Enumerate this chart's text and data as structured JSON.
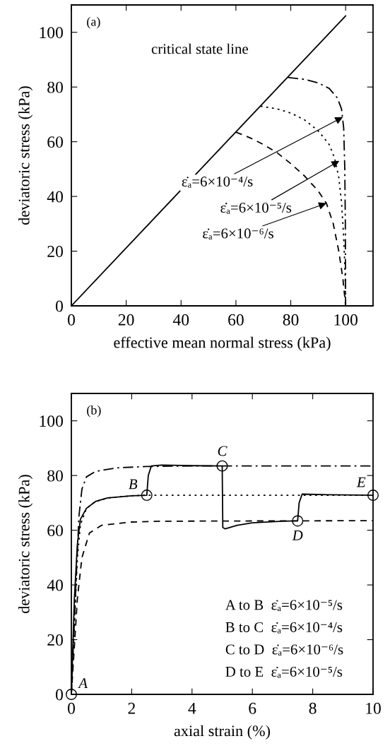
{
  "chart_data": [
    {
      "type": "line",
      "xlabel": "effective mean normal stress (kPa)",
      "ylabel": "deviatoric stress (kPa)",
      "xlim": [
        0,
        110
      ],
      "ylim": [
        0,
        110
      ],
      "xticks": [
        0,
        20,
        40,
        60,
        80,
        100
      ],
      "yticks": [
        0,
        20,
        40,
        60,
        80,
        100
      ],
      "grid": false,
      "legend": false,
      "marker": "none",
      "series": [
        {
          "name": "critical state line",
          "color": "#000000",
          "line_style": "solid",
          "x": [
            0,
            100
          ],
          "values": [
            0,
            106
          ]
        },
        {
          "color": "#000000",
          "line_style": "dashdot",
          "x": [
            79,
            85,
            90,
            94,
            97,
            98.5,
            99.3,
            99.7,
            99.9,
            100
          ],
          "values": [
            83.5,
            82.8,
            81.5,
            79.5,
            76,
            72,
            65,
            50,
            30,
            0
          ]
        },
        {
          "color": "#000000",
          "line_style": "dotted",
          "x": [
            69,
            75,
            80,
            85,
            90,
            94,
            96,
            97.5,
            98.5,
            99.3,
            99.8,
            100
          ],
          "values": [
            73,
            72,
            70.5,
            68,
            64,
            59,
            54,
            47,
            38,
            25,
            12,
            0
          ]
        },
        {
          "color": "#000000",
          "line_style": "dashed",
          "x": [
            60,
            65,
            70,
            75,
            80,
            85,
            90,
            93,
            95.5,
            97.5,
            99,
            100
          ],
          "values": [
            63.5,
            61.5,
            59,
            56,
            52,
            47.5,
            42,
            37.5,
            30,
            20,
            10,
            0
          ]
        }
      ],
      "annotations": [
        "(a)",
        {
          "text": "ε̇ₐ=6×10⁻⁴/s",
          "x": 99,
          "y": 69
        },
        {
          "text": "ε̇ₐ=6×10⁻⁵/s",
          "x": 97.7,
          "y": 53
        },
        {
          "text": "ε̇ₐ=6×10⁻⁶/s",
          "x": 93,
          "y": 37.5
        }
      ]
    },
    {
      "type": "line",
      "xlabel": "axial strain (%)",
      "ylabel": "deviatoric stress (kPa)",
      "xlim": [
        0,
        10
      ],
      "ylim": [
        0,
        110
      ],
      "xticks": [
        0,
        2,
        4,
        6,
        8,
        10
      ],
      "yticks": [
        0,
        20,
        40,
        60,
        80,
        100
      ],
      "grid": false,
      "legend": false,
      "marker": "none",
      "series": [
        {
          "color": "#000000",
          "line_style": "dashdot",
          "x": [
            0,
            0.15,
            0.25,
            0.35,
            0.5,
            0.8,
            1.5,
            2.5,
            4,
            10
          ],
          "values": [
            0,
            40,
            65,
            75,
            79.5,
            81.5,
            82.8,
            83.3,
            83.5,
            83.5
          ]
        },
        {
          "color": "#000000",
          "line_style": "dotted",
          "x": [
            0,
            0.2,
            0.3,
            0.5,
            0.8,
            1.2,
            2,
            2.5,
            10
          ],
          "values": [
            0,
            50,
            62,
            68,
            70.5,
            71.8,
            72.6,
            72.8,
            72.8
          ]
        },
        {
          "color": "#000000",
          "line_style": "dashed",
          "x": [
            0,
            0.2,
            0.35,
            0.6,
            1,
            2,
            3,
            10
          ],
          "values": [
            0,
            35,
            50,
            59,
            61.8,
            63,
            63.3,
            63.5
          ]
        },
        {
          "color": "#000000",
          "line_style": "solid",
          "x": [
            0,
            0.1,
            0.2,
            0.3,
            0.5,
            0.8,
            1.2,
            2,
            2.5,
            2.55,
            2.65,
            3,
            4,
            5,
            5.02,
            5.1,
            5.5,
            6,
            7,
            7.5,
            7.55,
            7.65,
            8.5,
            10
          ],
          "values": [
            0,
            35,
            55,
            64,
            68,
            70.5,
            71.8,
            72.6,
            72.8,
            80,
            83.5,
            83.8,
            83.6,
            83.5,
            61,
            60.5,
            61.8,
            62.7,
            63.3,
            63.4,
            70,
            73.2,
            73,
            72.8
          ]
        },
        {
          "type": "scatter",
          "color": "#000000",
          "marker": "circle",
          "x": [
            0,
            2.5,
            5,
            7.5,
            10
          ],
          "values": [
            0,
            72.8,
            83.5,
            63.4,
            72.8
          ]
        }
      ],
      "annotations": [
        "(b)",
        {
          "text": "A",
          "x": 0,
          "y": 0
        },
        {
          "text": "B",
          "x": 2.5,
          "y": 72.8
        },
        {
          "text": "C",
          "x": 5,
          "y": 83.5
        },
        {
          "text": "D",
          "x": 7.5,
          "y": 63.4
        },
        {
          "text": "E",
          "x": 10,
          "y": 72.8
        },
        "A to B  ε̇ₐ=6×10⁻⁵/s",
        "B to C  ε̇ₐ=6×10⁻⁴/s",
        "C to D  ε̇ₐ=6×10⁻⁶/s",
        "D to E  ε̇ₐ=6×10⁻⁵/s"
      ]
    }
  ]
}
